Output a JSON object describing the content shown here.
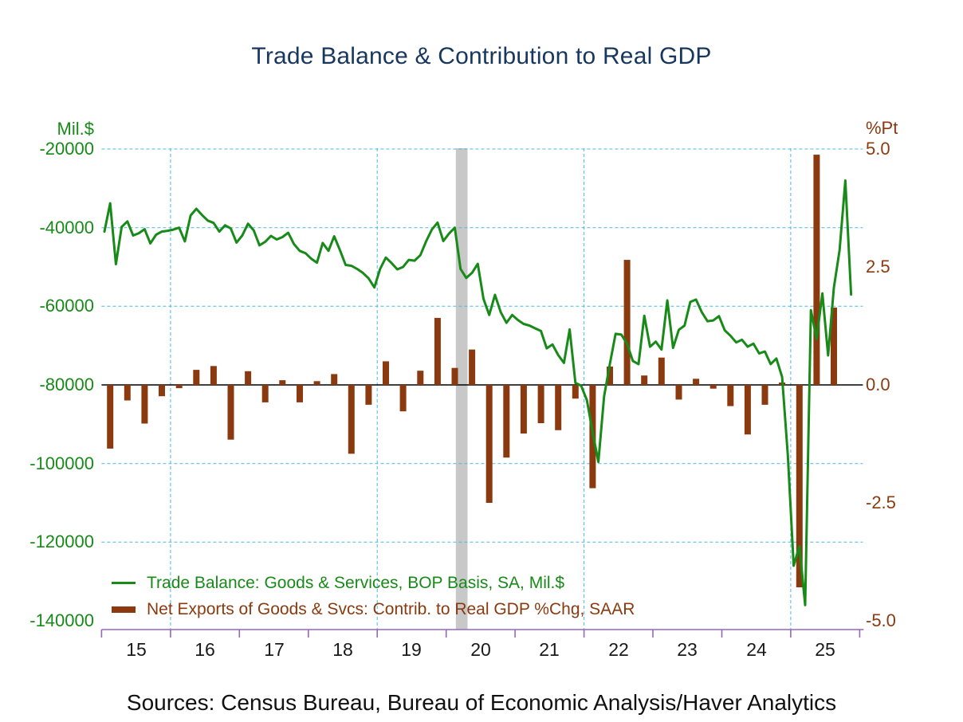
{
  "title": {
    "text": "Trade Balance & Contribution to Real GDP",
    "color": "#17375e"
  },
  "source_note": "Sources:  Census Bureau, Bureau of Economic Analysis/Haver Analytics",
  "legend": {
    "items": [
      {
        "label": "Trade Balance: Goods & Services, BOP Basis, SA, Mil.$",
        "color": "#178a17",
        "swatch": "line"
      },
      {
        "label": "Net Exports of Goods & Svcs: Contrib. to Real GDP %Chg, SAAR",
        "color": "#8b3a10",
        "swatch": "bar"
      }
    ]
  },
  "axes": {
    "left": {
      "unit": "Mil.$",
      "color": "#178a17",
      "tick_labels": [
        "-20000",
        "-40000",
        "-60000",
        "-80000",
        "-100000",
        "-120000",
        "-140000"
      ],
      "tick_values": [
        -20000,
        -40000,
        -60000,
        -80000,
        -100000,
        -120000,
        -140000
      ],
      "range": [
        -140000,
        -20000
      ]
    },
    "right": {
      "unit": "%Pt",
      "color": "#8b3a10",
      "tick_labels": [
        "5.0",
        "2.5",
        "0.0",
        "-2.5",
        "-5.0"
      ],
      "tick_values": [
        5.0,
        2.5,
        0.0,
        -2.5,
        -5.0
      ],
      "range": [
        -5.0,
        5.0
      ]
    },
    "x": {
      "year_labels": [
        "15",
        "16",
        "17",
        "18",
        "19",
        "20",
        "21",
        "22",
        "23",
        "24",
        "25"
      ],
      "first_year": 2015,
      "num_year_ticks": 12,
      "label_color": "#1a1a1a",
      "axis_color": "#9467bd"
    }
  },
  "grid": {
    "h_line_values": [
      -20000,
      -40000,
      -60000,
      -100000,
      -120000
    ],
    "v_line_years": [
      2016,
      2019,
      2022,
      2025
    ],
    "color": "#4ab8e4",
    "zero_line_color": "#000000"
  },
  "recession_band": {
    "start_year_frac": 2020.14,
    "end_year_frac": 2020.31,
    "color": "#c8c8c8"
  },
  "chart_data": {
    "type": "combo",
    "title": "Trade Balance & Contribution to Real GDP",
    "series": [
      {
        "name": "Trade Balance: Goods & Services, BOP Basis, SA, Mil.$",
        "type": "line",
        "axis": "left",
        "unit": "Mil.$",
        "freq": "monthly",
        "start": "2015-01",
        "color": "#178a17",
        "values": [
          -41000,
          -33800,
          -49300,
          -39800,
          -38400,
          -42000,
          -41400,
          -40400,
          -44000,
          -41800,
          -41000,
          -40800,
          -40500,
          -40000,
          -43500,
          -36900,
          -35200,
          -36800,
          -38200,
          -38800,
          -41000,
          -39400,
          -40200,
          -43800,
          -42000,
          -39000,
          -40700,
          -44500,
          -43600,
          -42100,
          -43000,
          -42400,
          -41300,
          -44200,
          -45900,
          -46500,
          -47900,
          -48900,
          -43900,
          -45900,
          -42200,
          -45700,
          -49500,
          -49700,
          -50500,
          -51500,
          -52900,
          -55200,
          -50500,
          -47600,
          -49000,
          -50600,
          -50000,
          -48200,
          -48400,
          -47000,
          -43500,
          -40500,
          -38700,
          -43400,
          -41500,
          -40000,
          -50500,
          -52800,
          -51500,
          -49200,
          -58100,
          -62200,
          -57100,
          -61500,
          -64200,
          -62200,
          -63500,
          -64500,
          -64900,
          -65600,
          -66300,
          -70700,
          -69700,
          -72400,
          -74400,
          -65900,
          -79500,
          -80200,
          -83900,
          -92000,
          -99600,
          -82900,
          -74700,
          -67000,
          -67200,
          -69500,
          -73900,
          -74700,
          -62400,
          -70300,
          -69000,
          -71000,
          -58500,
          -70600,
          -66000,
          -64900,
          -58900,
          -58300,
          -61500,
          -63800,
          -63600,
          -62500,
          -66100,
          -67500,
          -69200,
          -68500,
          -70300,
          -69500,
          -72000,
          -71500,
          -74700,
          -73300,
          -78000,
          -98000,
          -126000,
          -121000,
          -136000,
          -61000,
          -68300,
          -56700,
          -72500,
          -55300,
          -45700,
          -28000,
          -57000
        ]
      },
      {
        "name": "Net Exports of Goods & Svcs: Contrib. to Real GDP %Chg, SAAR",
        "type": "bar",
        "axis": "right",
        "unit": "%Pt",
        "freq": "quarterly",
        "start": "2015-Q1",
        "color": "#8b3a10",
        "values": [
          -1.35,
          -0.33,
          -0.82,
          -0.24,
          -0.07,
          0.32,
          0.4,
          -1.16,
          0.29,
          -0.37,
          0.1,
          -0.37,
          0.08,
          0.23,
          -1.46,
          -0.42,
          0.5,
          -0.56,
          0.3,
          1.42,
          0.36,
          0.75,
          -2.5,
          -1.54,
          -1.03,
          -0.81,
          -0.96,
          -0.29,
          -2.19,
          0.39,
          2.65,
          0.2,
          0.58,
          -0.31,
          0.13,
          -0.08,
          -0.45,
          -1.05,
          -0.42,
          0.05,
          -4.29,
          4.88,
          1.64
        ]
      }
    ],
    "xlabel": "",
    "ylabel_left": "Mil.$",
    "ylabel_right": "%Pt",
    "left_ylim": [
      -140000,
      -20000
    ],
    "right_ylim": [
      -5.0,
      5.0
    ],
    "grid": "dashed",
    "legend_position": "bottom-left"
  }
}
